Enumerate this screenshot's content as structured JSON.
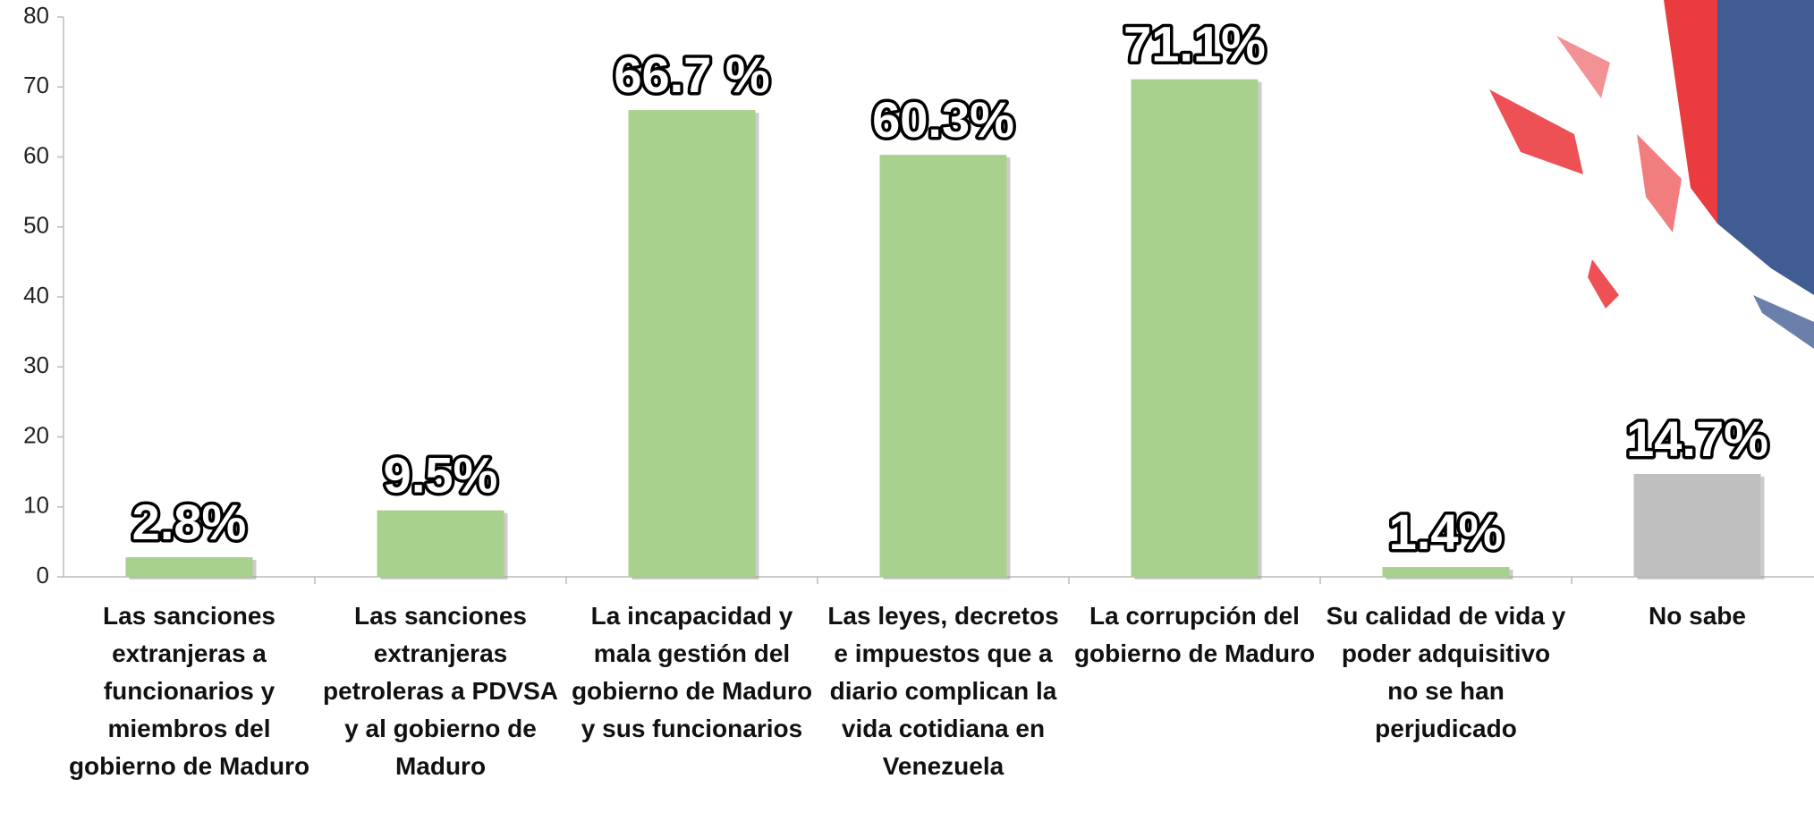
{
  "chart_data": {
    "type": "bar",
    "categories": [
      "Las sanciones extranjeras a funcionarios y miembros del gobierno de Maduro",
      "Las sanciones extranjeras petroleras a PDVSA y al gobierno de Maduro",
      "La incapacidad y mala gestión del gobierno de Maduro y sus funcionarios",
      "Las leyes, decretos e impuestos que a diario complican la vida cotidiana en Venezuela",
      "La corrupción del gobierno de Maduro",
      "Su calidad de vida y poder adquisitivo no se han perjudicado",
      "No sabe"
    ],
    "values": [
      2.8,
      9.5,
      66.7,
      60.3,
      71.1,
      1.4,
      14.7
    ],
    "value_labels": [
      "2.8%",
      "9.5%",
      "66.7 %",
      "60.3%",
      "71.1%",
      "1.4%",
      "14.7%"
    ],
    "colors": [
      "#a9d18e",
      "#a9d18e",
      "#a9d18e",
      "#a9d18e",
      "#a9d18e",
      "#a9d18e",
      "#bfbfbf"
    ],
    "ylim": [
      0,
      80
    ],
    "yticks": [
      0,
      10,
      20,
      30,
      40,
      50,
      60,
      70,
      80
    ]
  }
}
